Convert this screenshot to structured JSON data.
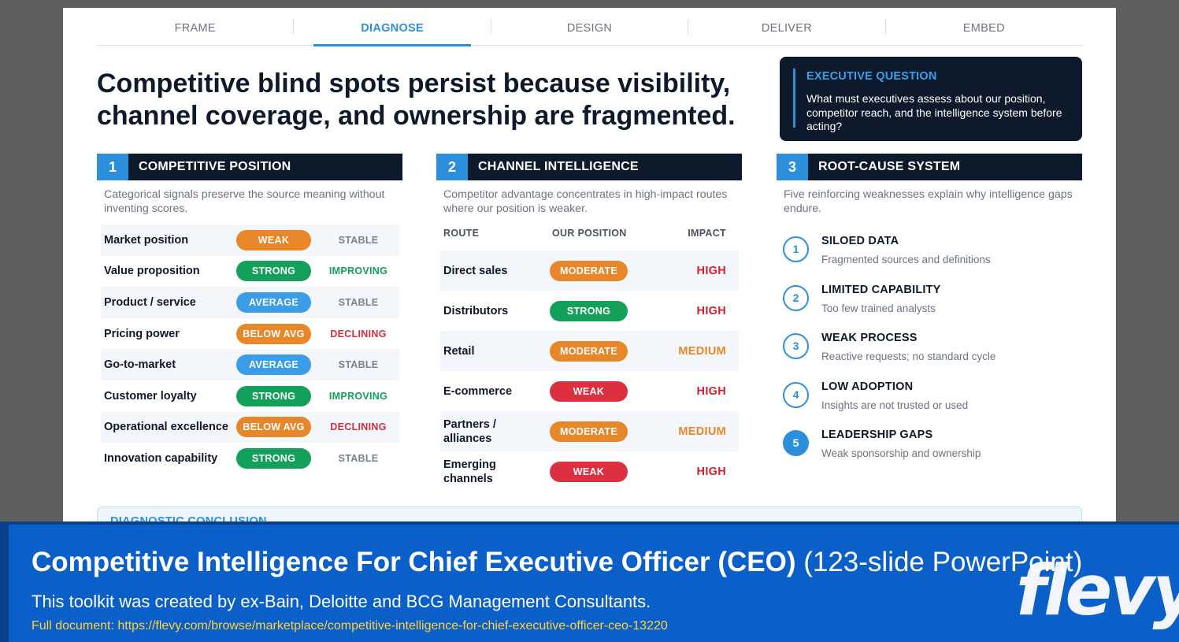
{
  "tabs": [
    {
      "label": "FRAME",
      "active": false
    },
    {
      "label": "DIAGNOSE",
      "active": true
    },
    {
      "label": "DESIGN",
      "active": false
    },
    {
      "label": "DELIVER",
      "active": false
    },
    {
      "label": "EMBED",
      "active": false
    }
  ],
  "headline": "Competitive blind spots persist because visibility, channel coverage, and ownership are fragmented.",
  "executive_question": {
    "title": "EXECUTIVE QUESTION",
    "text": "What must executives assess about our position, competitor reach, and the intelligence system before acting?"
  },
  "panels": {
    "position": {
      "number": "1",
      "title": "COMPETITIVE POSITION",
      "desc": "Categorical signals preserve the source meaning without inventing scores.",
      "rows": [
        {
          "label": "Market position",
          "rating": "WEAK",
          "trend": "STABLE"
        },
        {
          "label": "Value proposition",
          "rating": "STRONG",
          "trend": "IMPROVING"
        },
        {
          "label": "Product / service",
          "rating": "AVERAGE",
          "trend": "STABLE"
        },
        {
          "label": "Pricing power",
          "rating": "BELOW AVG",
          "trend": "DECLINING"
        },
        {
          "label": "Go-to-market",
          "rating": "AVERAGE",
          "trend": "STABLE"
        },
        {
          "label": "Customer loyalty",
          "rating": "STRONG",
          "trend": "IMPROVING"
        },
        {
          "label": "Operational excellence",
          "rating": "BELOW AVG",
          "trend": "DECLINING"
        },
        {
          "label": "Innovation capability",
          "rating": "STRONG",
          "trend": "STABLE"
        }
      ]
    },
    "channel": {
      "number": "2",
      "title": "CHANNEL INTELLIGENCE",
      "desc": "Competitor advantage concentrates in high-impact routes where our position is weaker.",
      "headers": {
        "route": "ROUTE",
        "position": "OUR POSITION",
        "impact": "IMPACT"
      },
      "rows": [
        {
          "route": "Direct sales",
          "position": "MODERATE",
          "impact": "HIGH"
        },
        {
          "route": "Distributors",
          "position": "STRONG",
          "impact": "HIGH"
        },
        {
          "route": "Retail",
          "position": "MODERATE",
          "impact": "MEDIUM"
        },
        {
          "route": "E-commerce",
          "position": "WEAK",
          "impact": "HIGH"
        },
        {
          "route": "Partners / alliances",
          "position": "MODERATE",
          "impact": "MEDIUM"
        },
        {
          "route": "Emerging channels",
          "position": "WEAK",
          "impact": "HIGH"
        }
      ]
    },
    "root": {
      "number": "3",
      "title": "ROOT-CAUSE SYSTEM",
      "desc": "Five reinforcing weaknesses explain why intelligence gaps endure.",
      "items": [
        {
          "n": "1",
          "title": "SILOED DATA",
          "sub": "Fragmented sources and definitions"
        },
        {
          "n": "2",
          "title": "LIMITED CAPABILITY",
          "sub": "Too few trained analysts"
        },
        {
          "n": "3",
          "title": "WEAK PROCESS",
          "sub": "Reactive requests; no standard cycle"
        },
        {
          "n": "4",
          "title": "LOW ADOPTION",
          "sub": "Insights are not trusted or used"
        },
        {
          "n": "5",
          "title": "LEADERSHIP GAPS",
          "sub": "Weak sponsorship and ownership"
        }
      ]
    }
  },
  "conclusion_title": "DIAGNOSTIC CONCLUSION",
  "colors": {
    "WEAK_position": "#e8872a",
    "STRONG": "#13a05a",
    "AVERAGE": "#3b9ce8",
    "BELOW AVG": "#e8872a",
    "MODERATE": "#e8872a",
    "WEAK_channel": "#dc3040",
    "IMPROVING": "#13a05a",
    "STABLE": "#7a828c",
    "DECLINING": "#d23040",
    "HIGH": "#d02030",
    "MEDIUM": "#e8872a"
  },
  "banner": {
    "title_bold": "Competitive Intelligence For Chief Executive Officer (CEO)",
    "title_rest": " (123-slide PowerPoint)",
    "subtitle": "This toolkit was created by ex-Bain, Deloitte and BCG Management Consultants.",
    "link": "Full document: https://flevy.com/browse/marketplace/competitive-intelligence-for-chief-executive-officer-ceo-13220",
    "logo": "flevy"
  }
}
